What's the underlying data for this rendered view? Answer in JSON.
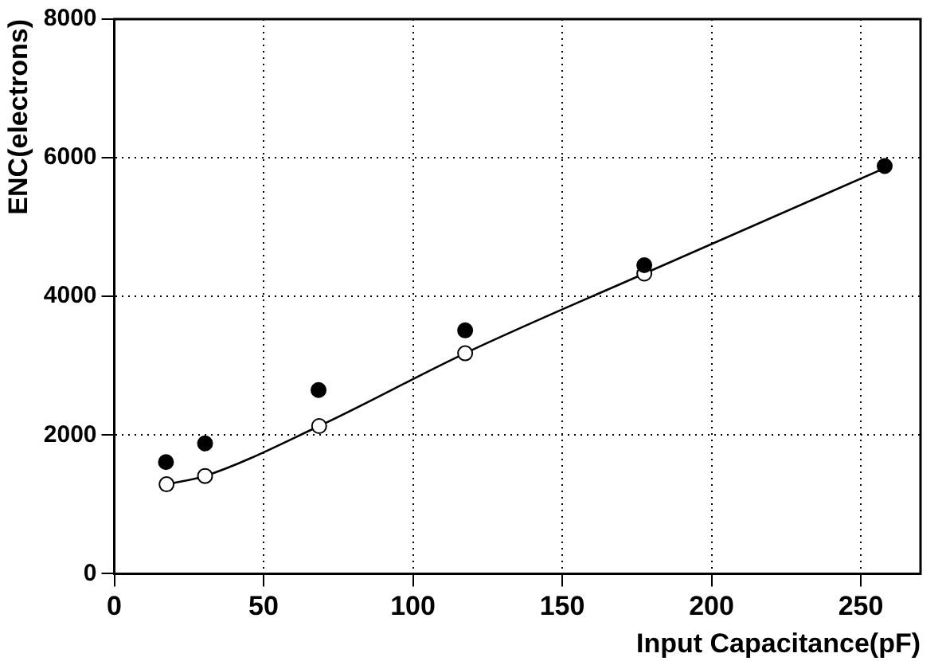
{
  "chart_data": {
    "type": "scatter",
    "xlabel": "Input Capacitance(pF)",
    "ylabel": "ENC(electrons)",
    "xlim": [
      0,
      270
    ],
    "xticks": [
      0,
      50,
      100,
      150,
      200,
      250
    ],
    "ylim": [
      0,
      8000
    ],
    "yticks": [
      0,
      2000,
      4000,
      6000,
      8000
    ],
    "grid": true,
    "legend": false,
    "marker": "circle",
    "series": [
      {
        "type": "scatter",
        "color": "#000000",
        "x": [
          17.3,
          30.4,
          68.4,
          117.5,
          177.5,
          258
        ],
        "values": [
          1610,
          1880,
          2650,
          3510,
          4450,
          5880
        ]
      },
      {
        "type": "scatter",
        "color": "#ffffff",
        "x": [
          17.5,
          30.4,
          68.6,
          117.5,
          177.5
        ],
        "values": [
          1290,
          1410,
          2130,
          3180,
          4330
        ]
      },
      {
        "type": "line",
        "color": "#000000",
        "marker": "none",
        "x": [
          17.5,
          30.4,
          68.6,
          117.5,
          177.5,
          258
        ],
        "values": [
          1290,
          1410,
          2130,
          3180,
          4330,
          5850
        ]
      }
    ]
  }
}
